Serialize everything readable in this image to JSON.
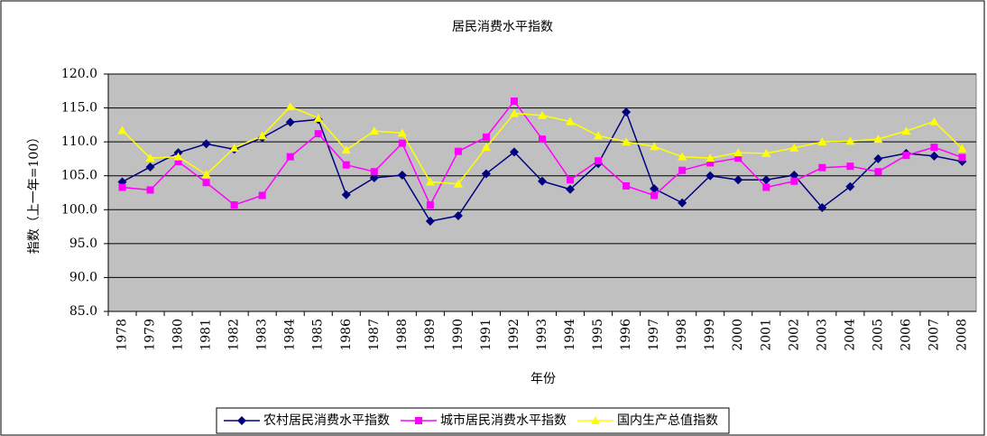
{
  "chart_data": {
    "type": "line",
    "title": "居民消费水平指数",
    "x_label": "年份",
    "y_label": "指数（上一年=100）",
    "categories": [
      "1978",
      "1979",
      "1980",
      "1981",
      "1982",
      "1983",
      "1984",
      "1985",
      "1986",
      "1987",
      "1988",
      "1989",
      "1990",
      "1991",
      "1992",
      "1993",
      "1994",
      "1995",
      "1996",
      "1997",
      "1998",
      "1999",
      "2000",
      "2001",
      "2002",
      "2003",
      "2004",
      "2005",
      "2006",
      "2007",
      "2008"
    ],
    "ylim": [
      85,
      120
    ],
    "yticks": [
      {
        "value": 85,
        "label": "85.0"
      },
      {
        "value": 90,
        "label": "90.0"
      },
      {
        "value": 95,
        "label": "95.0"
      },
      {
        "value": 100,
        "label": "100.0"
      },
      {
        "value": 105,
        "label": "105.0"
      },
      {
        "value": 110,
        "label": "110.0"
      },
      {
        "value": 115,
        "label": "115.0"
      },
      {
        "value": 120,
        "label": "120.0"
      }
    ],
    "grid": true,
    "legend": "bottom",
    "series": [
      {
        "name": "农村居民消费水平指数",
        "color": "#000080",
        "marker": "diamond",
        "values": [
          104.1,
          106.3,
          108.4,
          109.7,
          108.9,
          110.6,
          112.9,
          113.3,
          102.2,
          104.7,
          105.1,
          98.3,
          99.1,
          105.3,
          108.5,
          104.2,
          103.0,
          106.8,
          114.4,
          103.1,
          101.0,
          105.0,
          104.4,
          104.4,
          105.1,
          100.3,
          103.4,
          107.5,
          108.3,
          107.9,
          107.1
        ]
      },
      {
        "name": "城市居民消费水平指数",
        "color": "#ff00ff",
        "marker": "square",
        "values": [
          103.3,
          102.9,
          107.1,
          104.0,
          100.7,
          102.1,
          107.8,
          111.2,
          106.6,
          105.6,
          109.8,
          100.7,
          108.6,
          110.7,
          116.0,
          110.4,
          104.4,
          107.2,
          103.5,
          102.1,
          105.8,
          106.9,
          107.6,
          103.3,
          104.2,
          106.2,
          106.4,
          105.6,
          108.0,
          109.2,
          107.7
        ]
      },
      {
        "name": "国内生产总值指数",
        "color": "#ffff00",
        "marker": "triangle",
        "values": [
          111.7,
          107.6,
          107.8,
          105.2,
          109.1,
          110.9,
          115.2,
          113.5,
          108.8,
          111.6,
          111.3,
          104.1,
          103.8,
          109.2,
          114.2,
          113.9,
          113.0,
          110.9,
          110.0,
          109.3,
          107.8,
          107.6,
          108.4,
          108.3,
          109.1,
          110.0,
          110.1,
          110.4,
          111.6,
          113.0,
          109.0
        ]
      }
    ]
  }
}
